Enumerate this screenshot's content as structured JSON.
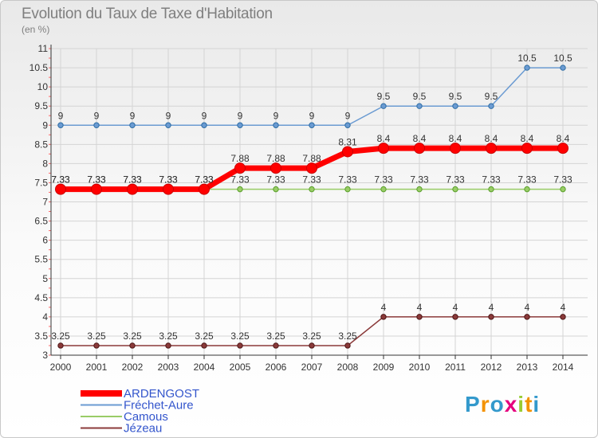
{
  "chart_data": {
    "type": "line",
    "title": "Evolution du Taux de Taxe d'Habitation",
    "ylabel": "(en %)",
    "x": [
      "2000",
      "2001",
      "2002",
      "2003",
      "2004",
      "2005",
      "2006",
      "2007",
      "2008",
      "2009",
      "2010",
      "2011",
      "2012",
      "2013",
      "2014"
    ],
    "ylim": [
      3,
      11
    ],
    "yticks": [
      "3",
      "3.5",
      "4",
      "4.5",
      "5",
      "5.5",
      "6",
      "6.5",
      "7",
      "7.5",
      "8",
      "8.5",
      "9",
      "9.5",
      "10",
      "10.5",
      "11"
    ],
    "series": [
      {
        "name": "ARDENGOST",
        "color": "#ff0000",
        "values": [
          7.33,
          7.33,
          7.33,
          7.33,
          7.33,
          7.88,
          7.88,
          7.88,
          8.31,
          8.4,
          8.4,
          8.4,
          8.4,
          8.4,
          8.4
        ],
        "labels": [
          "7.33",
          "7.33",
          "7.33",
          "7.33",
          "7.33",
          "7.88",
          "7.88",
          "7.88",
          "8.31",
          "8.4",
          "8.4",
          "8.4",
          "8.4",
          "8.4",
          "8.4"
        ]
      },
      {
        "name": "Fréchet-Aure",
        "color": "#6b9bd2",
        "values": [
          9,
          9,
          9,
          9,
          9,
          9,
          9,
          9,
          9,
          9.5,
          9.5,
          9.5,
          9.5,
          10.5,
          10.5
        ],
        "labels": [
          "9",
          "9",
          "9",
          "9",
          "9",
          "9",
          "9",
          "9",
          "9",
          "9.5",
          "9.5",
          "9.5",
          "9.5",
          "10.5",
          "10.5"
        ]
      },
      {
        "name": "Camous",
        "color": "#99cc66",
        "values": [
          7.33,
          7.33,
          7.33,
          7.33,
          7.33,
          7.33,
          7.33,
          7.33,
          7.33,
          7.33,
          7.33,
          7.33,
          7.33,
          7.33,
          7.33
        ],
        "labels": [
          "7.33",
          "7.33",
          "7.33",
          "7.33",
          "7.33",
          "7.33",
          "7.33",
          "7.33",
          "7.33",
          "7.33",
          "7.33",
          "7.33",
          "7.33",
          "7.33",
          "7.33"
        ]
      },
      {
        "name": "Jézeau",
        "color": "#8b3a3a",
        "values": [
          3.25,
          3.25,
          3.25,
          3.25,
          3.25,
          3.25,
          3.25,
          3.25,
          3.25,
          4,
          4,
          4,
          4,
          4,
          4
        ],
        "labels": [
          "3.25",
          "3.25",
          "3.25",
          "3.25",
          "3.25",
          "3.25",
          "3.25",
          "3.25",
          "3.25",
          "4",
          "4",
          "4",
          "4",
          "4",
          "4"
        ]
      }
    ],
    "legend_position": "bottom-left"
  },
  "branding": {
    "logo_letters": [
      "P",
      "r",
      "o",
      "x",
      "i",
      "t",
      "i"
    ],
    "logo_colors": [
      "#3399cc",
      "#f39200",
      "#3399cc",
      "#e5007e",
      "#99cc33",
      "#f39200",
      "#3399cc"
    ]
  }
}
